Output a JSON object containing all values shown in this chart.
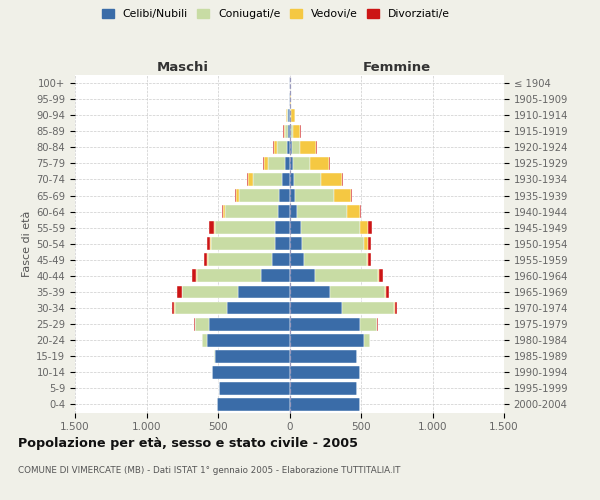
{
  "age_groups": [
    "0-4",
    "5-9",
    "10-14",
    "15-19",
    "20-24",
    "25-29",
    "30-34",
    "35-39",
    "40-44",
    "45-49",
    "50-54",
    "55-59",
    "60-64",
    "65-69",
    "70-74",
    "75-79",
    "80-84",
    "85-89",
    "90-94",
    "95-99",
    "100+"
  ],
  "birth_years": [
    "2000-2004",
    "1995-1999",
    "1990-1994",
    "1985-1989",
    "1980-1984",
    "1975-1979",
    "1970-1974",
    "1965-1969",
    "1960-1964",
    "1955-1959",
    "1950-1954",
    "1945-1949",
    "1940-1944",
    "1935-1939",
    "1930-1934",
    "1925-1929",
    "1920-1924",
    "1915-1919",
    "1910-1914",
    "1905-1909",
    "≤ 1904"
  ],
  "maschi": {
    "celibi": [
      510,
      490,
      540,
      520,
      580,
      560,
      440,
      360,
      200,
      120,
      100,
      100,
      80,
      70,
      55,
      30,
      20,
      12,
      8,
      2,
      2
    ],
    "coniugati": [
      0,
      0,
      0,
      5,
      30,
      100,
      360,
      390,
      450,
      450,
      450,
      420,
      370,
      280,
      200,
      120,
      70,
      18,
      10,
      0,
      0
    ],
    "vedovi": [
      0,
      0,
      0,
      0,
      0,
      0,
      5,
      5,
      5,
      5,
      5,
      10,
      15,
      25,
      35,
      30,
      20,
      8,
      5,
      0,
      0
    ],
    "divorziati": [
      0,
      0,
      0,
      0,
      5,
      5,
      20,
      30,
      30,
      20,
      20,
      30,
      10,
      5,
      5,
      5,
      5,
      5,
      0,
      0,
      0
    ]
  },
  "femmine": {
    "nubili": [
      490,
      470,
      490,
      470,
      520,
      490,
      370,
      280,
      180,
      100,
      90,
      80,
      50,
      40,
      30,
      25,
      15,
      8,
      5,
      3,
      2
    ],
    "coniugate": [
      0,
      0,
      0,
      5,
      40,
      120,
      360,
      390,
      440,
      440,
      430,
      410,
      350,
      270,
      190,
      120,
      60,
      15,
      8,
      0,
      0
    ],
    "vedove": [
      0,
      0,
      0,
      0,
      0,
      5,
      5,
      5,
      5,
      10,
      30,
      60,
      90,
      120,
      150,
      130,
      110,
      50,
      25,
      5,
      0
    ],
    "divorziate": [
      0,
      0,
      0,
      0,
      0,
      5,
      15,
      20,
      30,
      20,
      20,
      30,
      10,
      5,
      5,
      5,
      5,
      5,
      0,
      0,
      0
    ]
  },
  "colors": {
    "celibi": "#3a6ca8",
    "coniugati": "#c8dca4",
    "vedovi": "#f5c842",
    "divorziati": "#cc1515"
  },
  "xlim": 1500,
  "title": "Popolazione per età, sesso e stato civile - 2005",
  "subtitle": "COMUNE DI VIMERCATE (MB) - Dati ISTAT 1° gennaio 2005 - Elaborazione TUTTITALIA.IT",
  "ylabel_left": "Fasce di età",
  "label_maschi": "Maschi",
  "label_femmine": "Femmine",
  "bg_color": "#f0f0e8",
  "plot_bg": "#ffffff",
  "legend_labels": [
    "Celibi/Nubili",
    "Coniugati/e",
    "Vedovi/e",
    "Divorziati/e"
  ],
  "xtick_labels": [
    "1.500",
    "1.000",
    "500",
    "0",
    "500",
    "1.000",
    "1.500"
  ],
  "xtick_vals": [
    -1500,
    -1000,
    -500,
    0,
    500,
    1000,
    1500
  ]
}
